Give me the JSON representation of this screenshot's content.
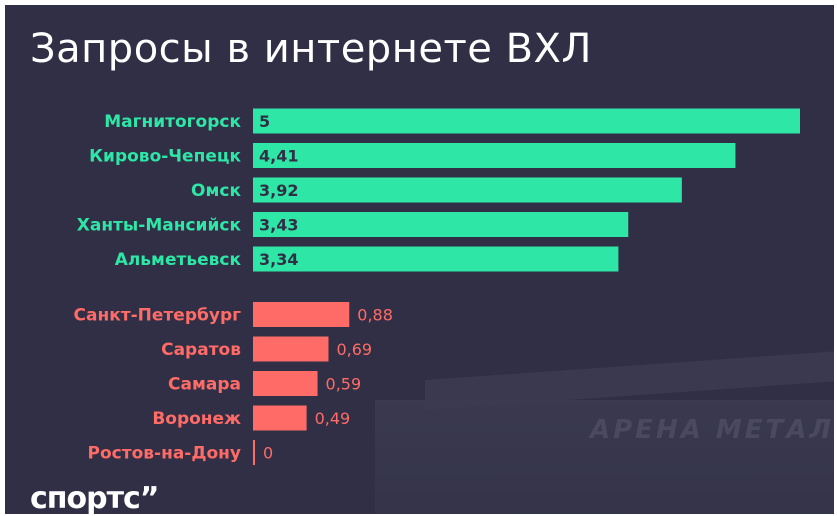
{
  "title": "Запросы в интернете ВХЛ",
  "logo": "спортс”",
  "background_sign": "АРЕНА МЕТАЛЛУРГ",
  "colors": {
    "background": "#302f45",
    "top_group": "#2ee6a6",
    "bottom_group": "#ff6b66",
    "title": "#ffffff"
  },
  "chart_data": {
    "type": "bar",
    "orientation": "horizontal",
    "title": "Запросы в интернете ВХЛ",
    "xlabel": "",
    "ylabel": "",
    "xlim": [
      0,
      5
    ],
    "grid": false,
    "legend": "none",
    "series": [
      {
        "categories": [
          "Магнитогорск",
          "Кирово-Чепецк",
          "Омск",
          "Ханты-Мансийск",
          "Альметьевск"
        ],
        "values": [
          5,
          4.41,
          3.92,
          3.43,
          3.34
        ],
        "value_labels": [
          "5",
          "4,41",
          "3,92",
          "3,43",
          "3,34"
        ],
        "color": "#2ee6a6"
      },
      {
        "categories": [
          "Санкт-Петербург",
          "Саратов",
          "Самара",
          "Воронеж",
          "Ростов-на-Дону"
        ],
        "values": [
          0.88,
          0.69,
          0.59,
          0.49,
          0
        ],
        "value_labels": [
          "0,88",
          "0,69",
          "0,59",
          "0,49",
          "0"
        ],
        "color": "#ff6b66"
      }
    ]
  }
}
